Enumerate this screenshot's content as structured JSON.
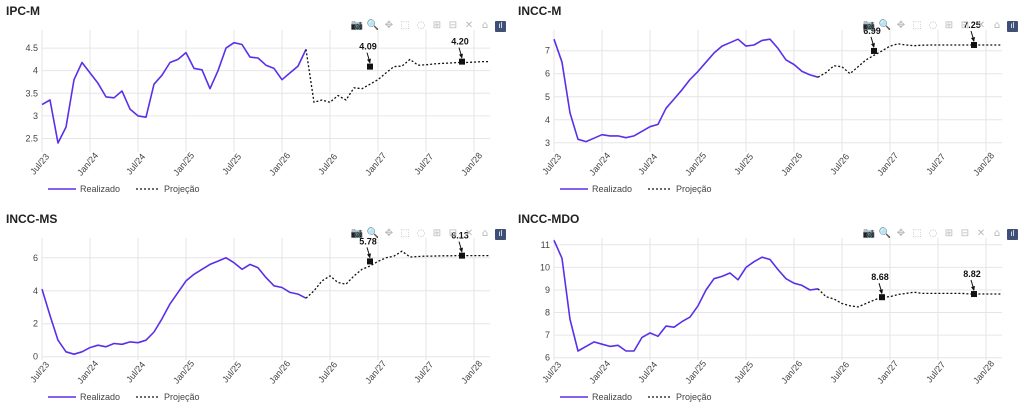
{
  "toolbar": {
    "icons": [
      "camera-icon",
      "zoom-icon",
      "pan-icon",
      "box-select-icon",
      "lasso-icon",
      "zoom-in-icon",
      "zoom-out-icon",
      "autoscale-icon",
      "home-icon",
      "plotly-logo-icon"
    ],
    "glyphs": [
      "📷",
      "🔍",
      "✥",
      "⬚",
      "◌",
      "⊞",
      "⊟",
      "✕",
      "⌂",
      "ıl"
    ]
  },
  "legend": {
    "realized": "Realizado",
    "projection": "Projeção"
  },
  "colors": {
    "realized": "#5b2fe8",
    "projection": "#111111",
    "grid": "#e6e6e6"
  },
  "x_ticks": [
    "Jul/23",
    "Jan/24",
    "Jul/24",
    "Jan/25",
    "Jul/25",
    "Jan/26",
    "Jul/26",
    "Jan/27",
    "Jul/27",
    "Jan/28"
  ],
  "chart_data": [
    {
      "title": "IPC-M",
      "type": "line",
      "y_ticks": [
        2.5,
        3,
        3.5,
        4,
        4.5
      ],
      "ylim": [
        2.2,
        4.9
      ],
      "x_range": [
        0,
        56
      ],
      "series": [
        {
          "name": "Realizado",
          "x": [
            0,
            1,
            2,
            3,
            4,
            5,
            6,
            7,
            8,
            9,
            10,
            11,
            12,
            13,
            14,
            15,
            16,
            17,
            18,
            19,
            20,
            21,
            22,
            23,
            24,
            25,
            26,
            27,
            28,
            29,
            30,
            31,
            32,
            33
          ],
          "values": [
            3.25,
            3.35,
            2.4,
            2.75,
            3.8,
            4.18,
            3.95,
            3.72,
            3.42,
            3.4,
            3.55,
            3.15,
            3.0,
            2.97,
            3.7,
            3.9,
            4.18,
            4.25,
            4.4,
            4.05,
            4.02,
            3.6,
            4.0,
            4.5,
            4.62,
            4.58,
            4.3,
            4.28,
            4.12,
            4.05,
            3.8,
            3.95,
            4.1,
            4.47
          ]
        },
        {
          "name": "Projeção",
          "x": [
            33,
            34,
            35,
            36,
            37,
            38,
            39,
            40,
            41,
            42,
            43,
            44,
            45,
            46,
            47,
            48,
            49,
            50,
            51,
            52,
            53,
            54,
            55,
            56
          ],
          "values": [
            4.47,
            3.3,
            3.35,
            3.3,
            3.45,
            3.35,
            3.62,
            3.6,
            3.7,
            3.8,
            3.95,
            4.09,
            4.1,
            4.25,
            4.12,
            4.13,
            4.15,
            4.16,
            4.17,
            4.18,
            4.18,
            4.19,
            4.2,
            4.2
          ]
        }
      ],
      "annotations": [
        {
          "x": 41,
          "y": 4.09,
          "label": "4.09"
        },
        {
          "x": 52.5,
          "y": 4.2,
          "label": "4.20"
        }
      ]
    },
    {
      "title": "INCC-M",
      "type": "line",
      "y_ticks": [
        3,
        4,
        5,
        6,
        7
      ],
      "ylim": [
        2.6,
        7.9
      ],
      "x_range": [
        0,
        56
      ],
      "series": [
        {
          "name": "Realizado",
          "x": [
            0,
            1,
            2,
            3,
            4,
            5,
            6,
            7,
            8,
            9,
            10,
            11,
            12,
            13,
            14,
            15,
            16,
            17,
            18,
            19,
            20,
            21,
            22,
            23,
            24,
            25,
            26,
            27,
            28,
            29,
            30,
            31,
            32,
            33
          ],
          "values": [
            7.5,
            6.5,
            4.3,
            3.15,
            3.05,
            3.2,
            3.35,
            3.3,
            3.3,
            3.22,
            3.3,
            3.5,
            3.7,
            3.8,
            4.5,
            4.9,
            5.3,
            5.75,
            6.1,
            6.5,
            6.9,
            7.2,
            7.35,
            7.5,
            7.2,
            7.25,
            7.45,
            7.5,
            7.1,
            6.6,
            6.4,
            6.1,
            5.95,
            5.85
          ]
        },
        {
          "name": "Projeção",
          "x": [
            33,
            34,
            35,
            36,
            37,
            38,
            39,
            40,
            41,
            42,
            43,
            44,
            45,
            46,
            47,
            48,
            49,
            50,
            51,
            52,
            53,
            54,
            55,
            56
          ],
          "values": [
            5.85,
            6.05,
            6.35,
            6.3,
            6.0,
            6.3,
            6.6,
            6.8,
            6.99,
            7.2,
            7.3,
            7.25,
            7.22,
            7.24,
            7.25,
            7.25,
            7.25,
            7.25,
            7.25,
            7.25,
            7.25,
            7.25,
            7.25,
            7.25
          ]
        }
      ],
      "annotations": [
        {
          "x": 40,
          "y": 6.99,
          "label": "6.99"
        },
        {
          "x": 52.5,
          "y": 7.25,
          "label": "7.25"
        }
      ]
    },
    {
      "title": "INCC-MS",
      "type": "line",
      "y_ticks": [
        0,
        2,
        4,
        6
      ],
      "ylim": [
        -0.2,
        7.2
      ],
      "x_range": [
        0,
        56
      ],
      "series": [
        {
          "name": "Realizado",
          "x": [
            0,
            1,
            2,
            3,
            4,
            5,
            6,
            7,
            8,
            9,
            10,
            11,
            12,
            13,
            14,
            15,
            16,
            17,
            18,
            19,
            20,
            21,
            22,
            23,
            24,
            25,
            26,
            27,
            28,
            29,
            30,
            31,
            32,
            33
          ],
          "values": [
            4.1,
            2.5,
            1.0,
            0.3,
            0.15,
            0.3,
            0.55,
            0.7,
            0.6,
            0.8,
            0.75,
            0.9,
            0.85,
            1.0,
            1.5,
            2.3,
            3.2,
            3.9,
            4.6,
            5.0,
            5.3,
            5.6,
            5.8,
            6.0,
            5.7,
            5.3,
            5.6,
            5.4,
            4.8,
            4.3,
            4.2,
            3.9,
            3.8,
            3.55
          ]
        },
        {
          "name": "Projeção",
          "x": [
            33,
            34,
            35,
            36,
            37,
            38,
            39,
            40,
            41,
            42,
            43,
            44,
            45,
            46,
            47,
            48,
            49,
            50,
            51,
            52,
            53,
            54,
            55,
            56
          ],
          "values": [
            3.55,
            4.0,
            4.6,
            4.9,
            4.5,
            4.4,
            4.9,
            5.3,
            5.5,
            5.78,
            6.0,
            6.1,
            6.4,
            6.05,
            6.08,
            6.1,
            6.1,
            6.12,
            6.12,
            6.13,
            6.13,
            6.13,
            6.13,
            6.13
          ]
        }
      ],
      "annotations": [
        {
          "x": 41,
          "y": 5.78,
          "label": "5.78"
        },
        {
          "x": 52.5,
          "y": 6.13,
          "label": "6.13"
        }
      ]
    },
    {
      "title": "INCC-MDO",
      "type": "line",
      "y_ticks": [
        6,
        7,
        8,
        9,
        10,
        11
      ],
      "ylim": [
        5.9,
        11.3
      ],
      "x_range": [
        0,
        56
      ],
      "series": [
        {
          "name": "Realizado",
          "x": [
            0,
            1,
            2,
            3,
            4,
            5,
            6,
            7,
            8,
            9,
            10,
            11,
            12,
            13,
            14,
            15,
            16,
            17,
            18,
            19,
            20,
            21,
            22,
            23,
            24,
            25,
            26,
            27,
            28,
            29,
            30,
            31,
            32,
            33
          ],
          "values": [
            11.2,
            10.4,
            7.7,
            6.3,
            6.5,
            6.7,
            6.6,
            6.5,
            6.55,
            6.3,
            6.3,
            6.9,
            7.1,
            6.95,
            7.4,
            7.35,
            7.6,
            7.8,
            8.3,
            9.0,
            9.5,
            9.6,
            9.75,
            9.45,
            10.0,
            10.25,
            10.45,
            10.35,
            9.9,
            9.5,
            9.3,
            9.2,
            9.0,
            9.05
          ]
        },
        {
          "name": "Projeção",
          "x": [
            33,
            34,
            35,
            36,
            37,
            38,
            39,
            40,
            41,
            42,
            43,
            44,
            45,
            46,
            47,
            48,
            49,
            50,
            51,
            52,
            53,
            54,
            55,
            56
          ],
          "values": [
            9.05,
            8.7,
            8.6,
            8.4,
            8.3,
            8.25,
            8.4,
            8.55,
            8.68,
            8.7,
            8.8,
            8.85,
            8.9,
            8.85,
            8.85,
            8.85,
            8.85,
            8.85,
            8.85,
            8.82,
            8.82,
            8.82,
            8.82,
            8.82
          ]
        }
      ],
      "annotations": [
        {
          "x": 41,
          "y": 8.68,
          "label": "8.68"
        },
        {
          "x": 52.5,
          "y": 8.82,
          "label": "8.82"
        }
      ]
    }
  ]
}
